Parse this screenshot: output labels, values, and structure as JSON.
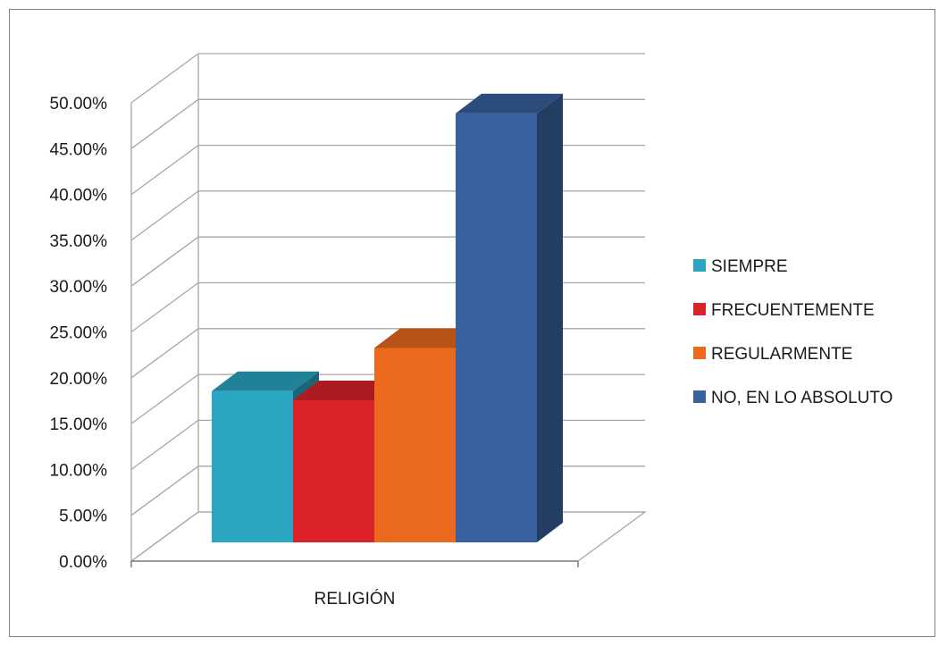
{
  "chart_data": {
    "type": "bar",
    "style": "3d-clustered-column",
    "categories": [
      "RELIGIÓN"
    ],
    "series": [
      {
        "name": "SIEMPRE",
        "values": [
          16.5
        ],
        "color": "#2AA5C2"
      },
      {
        "name": "FRECUENTEMENTE",
        "values": [
          15.5
        ],
        "color": "#DC2229"
      },
      {
        "name": "REGULARMENTE",
        "values": [
          21.2
        ],
        "color": "#EC6A1E"
      },
      {
        "name": "NO, EN LO ABSOLUTO",
        "values": [
          46.8
        ],
        "color": "#38629F"
      }
    ],
    "ylim": [
      0,
      50
    ],
    "y_tick_step": 5,
    "y_tick_labels": [
      "0.00%",
      "5.00%",
      "10.00%",
      "15.00%",
      "20.00%",
      "25.00%",
      "30.00%",
      "35.00%",
      "40.00%",
      "45.00%",
      "50.00%"
    ],
    "grid": true,
    "legend_position": "right",
    "title": "",
    "xlabel": "",
    "ylabel": ""
  }
}
